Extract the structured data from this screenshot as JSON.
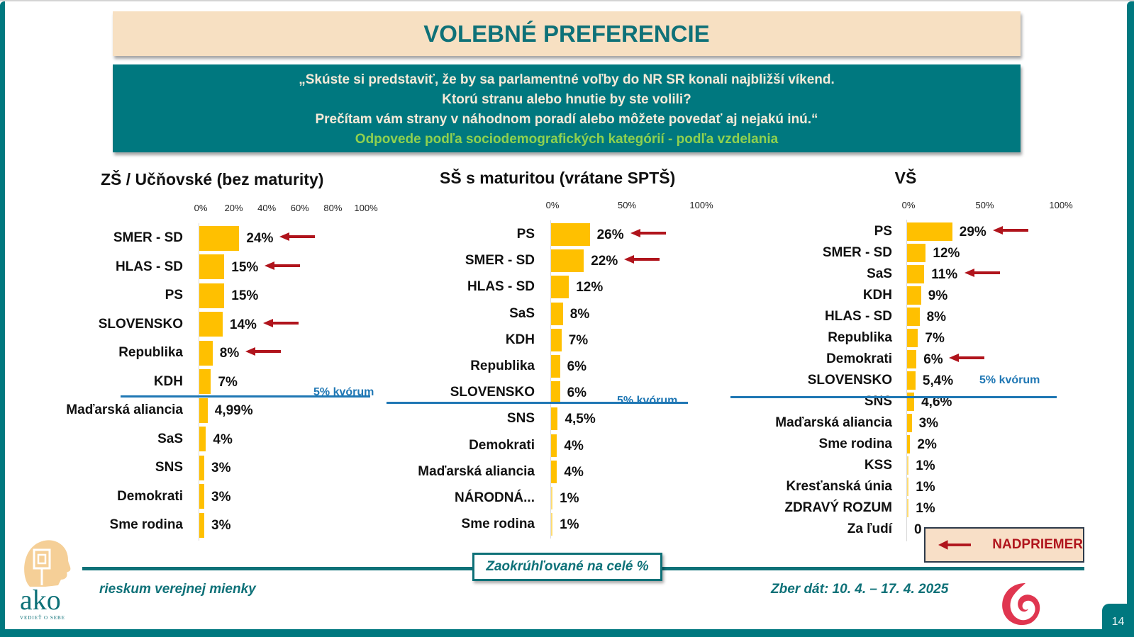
{
  "title": "VOLEBNÉ PREFERENCIE",
  "question": {
    "lines": [
      "„Skúste si predstaviť, že by sa parlamentné voľby do NR SR konali najbližší víkend.",
      "Ktorú stranu alebo hnutie by ste volili?",
      "Prečítam vám strany v náhodnom poradí alebo môžete povedať aj nejakú inú.“"
    ],
    "subtitle": "Odpovede podľa sociodemografických kategórií - podľa vzdelania"
  },
  "colors": {
    "bar": "#ffc000",
    "teal": "#00787f",
    "quorum": "#1f77b4",
    "arrow": "#b0141c"
  },
  "chart_data": [
    {
      "type": "bar",
      "orientation": "horizontal",
      "title": "ZŠ  / Učňovské (bez maturity)",
      "xlim": [
        0,
        100
      ],
      "ticks": [
        "0%",
        "20%",
        "40%",
        "60%",
        "80%",
        "100%"
      ],
      "tick_values": [
        0,
        20,
        40,
        60,
        80,
        100
      ],
      "quorum_label": "5% kvórum",
      "quorum_after_index": 5,
      "categories": [
        "SMER - SD",
        "HLAS - SD",
        "PS",
        "SLOVENSKO",
        "Republika",
        "KDH",
        "Maďarská aliancia",
        "SaS",
        "SNS",
        "Demokrati",
        "Sme rodina"
      ],
      "values": [
        24,
        15,
        15,
        14,
        8,
        7,
        4.99,
        4,
        3,
        3,
        3
      ],
      "labels": [
        "24%",
        "15%",
        "15%",
        "14%",
        "8%",
        "7%",
        "4,99%",
        "4%",
        "3%",
        "3%",
        "3%"
      ],
      "above_average": [
        true,
        true,
        false,
        true,
        true,
        false,
        false,
        false,
        false,
        false,
        false
      ]
    },
    {
      "type": "bar",
      "orientation": "horizontal",
      "title": "SŠ s maturitou (vrátane SPTŠ)",
      "xlim": [
        0,
        100
      ],
      "ticks": [
        "0%",
        "50%",
        "100%"
      ],
      "tick_values": [
        0,
        50,
        100
      ],
      "quorum_label": "5% kvórum",
      "quorum_after_index": 6,
      "categories": [
        "PS",
        "SMER - SD",
        "HLAS - SD",
        "SaS",
        "KDH",
        "Republika",
        "SLOVENSKO",
        "SNS",
        "Demokrati",
        "Maďarská aliancia",
        "NÁRODNÁ...",
        "Sme rodina"
      ],
      "values": [
        26,
        22,
        12,
        8,
        7,
        6,
        6,
        4.5,
        4,
        4,
        1,
        1
      ],
      "labels": [
        "26%",
        "22%",
        "12%",
        "8%",
        "7%",
        "6%",
        "6%",
        "4,5%",
        "4%",
        "4%",
        "1%",
        "1%"
      ],
      "above_average": [
        true,
        true,
        false,
        false,
        false,
        false,
        false,
        false,
        false,
        false,
        false,
        false
      ]
    },
    {
      "type": "bar",
      "orientation": "horizontal",
      "title": "VŠ",
      "xlim": [
        0,
        100
      ],
      "ticks": [
        "0%",
        "50%",
        "100%"
      ],
      "tick_values": [
        0,
        50,
        100
      ],
      "quorum_label": "5% kvórum",
      "quorum_after_index": 7,
      "categories": [
        "PS",
        "SMER - SD",
        "SaS",
        "KDH",
        "HLAS - SD",
        "Republika",
        "Demokrati",
        "SLOVENSKO",
        "SNS",
        "Maďarská aliancia",
        "Sme rodina",
        "KSS",
        "Kresťanská únia",
        "ZDRAVÝ ROZUM",
        "Za ľudí"
      ],
      "values": [
        29,
        12,
        11,
        9,
        8,
        7,
        6,
        5.4,
        4.6,
        3,
        2,
        1,
        1,
        1,
        0
      ],
      "labels": [
        "29%",
        "12%",
        "11%",
        "9%",
        "8%",
        "7%",
        "6%",
        "5,4%",
        "4,6%",
        "3%",
        "2%",
        "1%",
        "1%",
        "1%",
        "0"
      ],
      "above_average": [
        true,
        false,
        true,
        false,
        false,
        false,
        true,
        false,
        false,
        false,
        false,
        false,
        false,
        false,
        false
      ]
    }
  ],
  "legend": {
    "label": "NADPRIEMER",
    "icon": "left-arrow-icon"
  },
  "footer": {
    "rounding_note": "Zaokrúhľované na celé %",
    "tagline": "rieskum verejnej mienky",
    "collection_date": "Zber dát: 10. 4. – 17. 4. 2025",
    "page_number": "14",
    "logo_text": "ako",
    "logo_slogan": "VEDIEŤ O SEBE"
  }
}
